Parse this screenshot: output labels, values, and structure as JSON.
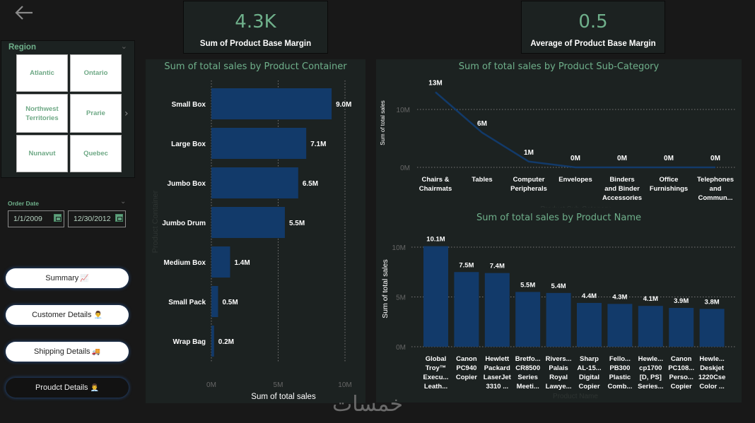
{
  "nav": {
    "back_icon": "arrow-left-icon"
  },
  "region_slicer": {
    "title": "Region",
    "items": [
      "Atlantic",
      "Ontario",
      "Northwest Territories",
      "Prarie",
      "Nunavut",
      "Quebec"
    ]
  },
  "order_date": {
    "label": "Order Date",
    "start": "1/1/2009",
    "end": "12/30/2012",
    "icon": "calendar-icon"
  },
  "nav_buttons": [
    {
      "label": "Summary",
      "icon": "chart-increasing-icon",
      "glyph": "📈",
      "active": false
    },
    {
      "label": "Customer Details",
      "icon": "person-icon",
      "glyph": "👨‍💼",
      "active": false
    },
    {
      "label": "Shipping Details",
      "icon": "truck-icon",
      "glyph": "🚚",
      "active": false
    },
    {
      "label": "Proudct Details",
      "icon": "person-icon",
      "glyph": "👨‍💼",
      "active": true
    }
  ],
  "kpis": [
    {
      "value": "4.3K",
      "label": "Sum of Product Base Margin"
    },
    {
      "value": "0.5",
      "label": "Average of Product Base Margin"
    }
  ],
  "colors": {
    "accent": "#6fb08b",
    "bar": "#123a6a",
    "panel": "#1c2221",
    "background": "#181818"
  },
  "watermark": "خمسات",
  "chart_data": [
    {
      "type": "bar",
      "orientation": "horizontal",
      "title": "Sum of total sales by Product Container",
      "xlabel": "Sum of total sales",
      "ylabel": "Product Container",
      "categories": [
        "Small Box",
        "Large Box",
        "Jumbo Box",
        "Jumbo Drum",
        "Medium Box",
        "Small Pack",
        "Wrap Bag"
      ],
      "values": [
        9.0,
        7.1,
        6.5,
        5.5,
        1.4,
        0.5,
        0.2
      ],
      "data_labels": [
        "9.0M",
        "7.1M",
        "6.5M",
        "5.5M",
        "1.4M",
        "0.5M",
        "0.2M"
      ],
      "unit": "M",
      "xlim": [
        0,
        10
      ],
      "ticks": [
        0,
        5,
        10
      ],
      "tick_labels": [
        "0M",
        "5M",
        "10M"
      ],
      "grid": true
    },
    {
      "type": "line",
      "title": "Sum of total sales by Product Sub-Category",
      "xlabel": "Product Sub-Category",
      "ylabel": "Sum of total sales",
      "categories": [
        "Chairs & Chairmats",
        "Tables",
        "Computer Peripherals",
        "Envelopes",
        "Binders and Binder Accessories",
        "Office Furnishings",
        "Telephones and Commun..."
      ],
      "values": [
        13,
        6,
        1,
        0,
        0,
        0,
        0
      ],
      "data_labels": [
        "13M",
        "6M",
        "1M",
        "0M",
        "0M",
        "0M",
        "0M"
      ],
      "unit": "M",
      "ylim": [
        0,
        13
      ],
      "ticks": [
        0,
        10
      ],
      "tick_labels": [
        "0M",
        "10M"
      ],
      "grid": true
    },
    {
      "type": "bar",
      "orientation": "vertical",
      "title": "Sum of total sales by Product Name",
      "xlabel": "Product Name",
      "ylabel": "Sum of total sales",
      "categories": [
        "Global Troy™ Execu... Leath...",
        "Canon PC940 Copier",
        "Hewlett Packard LaserJet 3310 ...",
        "Bretfo... CR8500 Series Meeti...",
        "Rivers... Palais Royal Lawye...",
        "Sharp AL-15... Digital Copier",
        "Fello... PB300 Plastic Comb...",
        "Hewle... cp1700 [D, PS] Series...",
        "Canon PC108... Perso... Copier",
        "Hewle... Deskjet 1220Cse Color ..."
      ],
      "category_lines": [
        [
          "Global",
          "Troy™",
          "Execu...",
          "Leath..."
        ],
        [
          "Canon",
          "PC940",
          "Copier"
        ],
        [
          "Hewlett",
          "Packard",
          "LaserJet",
          "3310 ..."
        ],
        [
          "Bretfo...",
          "CR8500",
          "Series",
          "Meeti..."
        ],
        [
          "Rivers...",
          "Palais",
          "Royal",
          "Lawye..."
        ],
        [
          "Sharp",
          "AL-15...",
          "Digital",
          "Copier"
        ],
        [
          "Fello...",
          "PB300",
          "Plastic",
          "Comb..."
        ],
        [
          "Hewle...",
          "cp1700",
          "[D, PS]",
          "Series..."
        ],
        [
          "Canon",
          "PC108...",
          "Perso...",
          "Copier"
        ],
        [
          "Hewle...",
          "Deskjet",
          "1220Cse",
          "Color ..."
        ]
      ],
      "values": [
        10.1,
        7.5,
        7.4,
        5.5,
        5.4,
        4.4,
        4.3,
        4.1,
        3.9,
        3.8
      ],
      "data_labels": [
        "10.1M",
        "7.5M",
        "7.4M",
        "5.5M",
        "5.4M",
        "4.4M",
        "4.3M",
        "4.1M",
        "3.9M",
        "3.8M"
      ],
      "unit": "M",
      "ylim": [
        0,
        10.3
      ],
      "ticks": [
        0,
        5,
        10
      ],
      "tick_labels": [
        "0M",
        "5M",
        "10M"
      ],
      "grid": true
    }
  ]
}
